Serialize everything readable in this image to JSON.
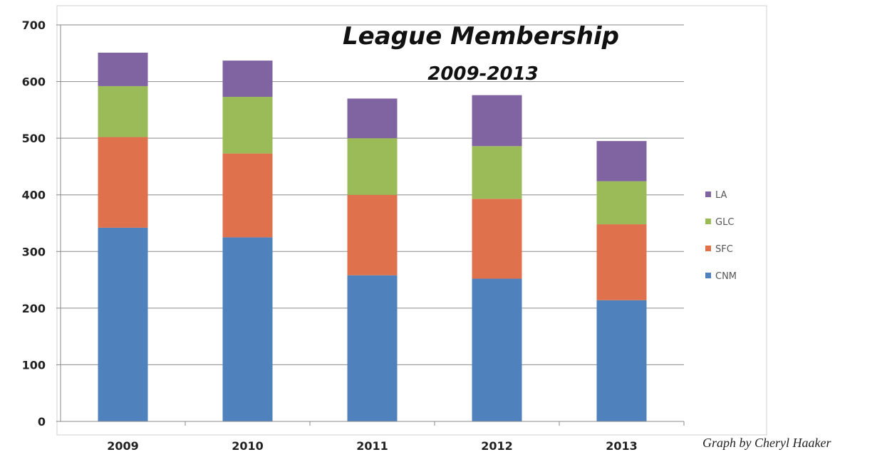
{
  "chart_data": {
    "type": "bar",
    "stacked": true,
    "title": "League Membership",
    "subtitle": "2009-2013",
    "categories": [
      "2009",
      "2010",
      "2011",
      "2012",
      "2013"
    ],
    "series": [
      {
        "name": "CNM",
        "color": "#4F81BD",
        "values": [
          342,
          325,
          258,
          252,
          214
        ]
      },
      {
        "name": "SFC",
        "color": "#E0714D",
        "values": [
          160,
          148,
          142,
          141,
          134
        ]
      },
      {
        "name": "GLC",
        "color": "#9BBB59",
        "values": [
          90,
          100,
          100,
          93,
          76
        ]
      },
      {
        "name": "LA",
        "color": "#8064A2",
        "values": [
          59,
          64,
          70,
          90,
          71
        ]
      }
    ],
    "ylim": [
      0,
      700
    ],
    "yticks": [
      "0",
      "100",
      "200",
      "300",
      "400",
      "500",
      "600",
      "700"
    ],
    "grid": true,
    "legend_position": "right",
    "legend_order": [
      "LA",
      "GLC",
      "SFC",
      "CNM"
    ]
  },
  "credit": "Graph by Cheryl Haaker"
}
